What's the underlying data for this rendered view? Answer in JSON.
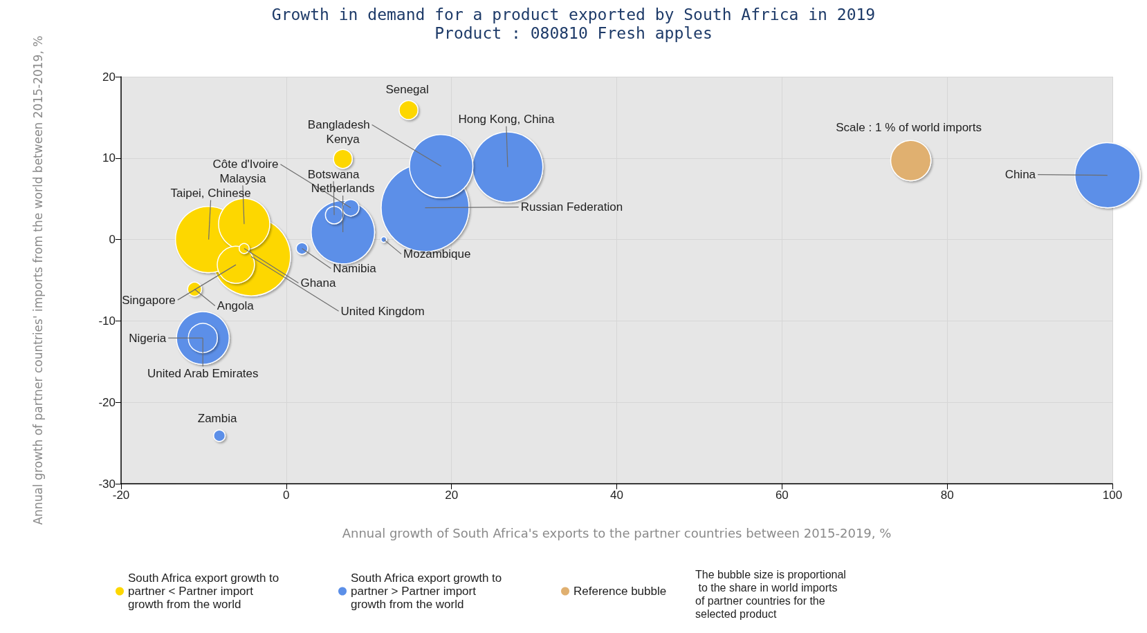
{
  "chart_data": {
    "type": "bubble",
    "title": "Growth in demand for a product exported by South Africa in 2019",
    "subtitle": "Product : 080810 Fresh apples",
    "xlabel": "Annual growth of South Africa's exports to the partner countries between 2015-2019, %",
    "ylabel": "Annual growth of partner countries' imports from the world between 2015-2019, %",
    "xlim": [
      -20,
      100
    ],
    "xticks": [
      -20,
      0,
      20,
      40,
      60,
      80,
      100
    ],
    "ylim": [
      -30,
      20
    ],
    "yticks": [
      -30,
      -20,
      -10,
      0,
      10,
      20
    ],
    "grid": true,
    "legend": "bottom",
    "marker": "circle",
    "series": [
      {
        "name": "South Africa export growth to partner < Partner import growth from the world",
        "color": "#fdd700",
        "x": [
          -4.25,
          -9.4,
          -5.1,
          -6.1,
          14.8,
          6.85,
          -11.1,
          -5.1
        ],
        "values": [
          -2.1,
          0.0,
          1.9,
          -3.1,
          15.9,
          9.9,
          -6.1,
          -1.1
        ],
        "sizes": [
          0.8,
          0.57,
          0.34,
          0.18,
          0.046,
          0.046,
          0.025,
          0.013
        ]
      },
      {
        "name": "South Africa export growth to partner > Partner import growth from the world",
        "color": "#5b8fe8",
        "x": [
          16.8,
          26.8,
          99.4,
          18.75,
          6.85,
          -10.1,
          -10.1,
          5.8,
          7.8,
          1.9,
          -8.1,
          11.8
        ],
        "values": [
          3.9,
          8.9,
          7.9,
          9.0,
          0.9,
          -12.1,
          -12.1,
          3.0,
          3.9,
          -1.1,
          -24.1,
          0.0
        ],
        "sizes": [
          1,
          0.64,
          0.55,
          0.52,
          0.52,
          0.36,
          0.11,
          0.04,
          0.035,
          0.017,
          0.017,
          0.004
        ]
      },
      {
        "name": "Reference bubble",
        "color": "#e0b070",
        "x": [
          75.6
        ],
        "values": [
          9.7
        ],
        "sizes": [
          0.21
        ]
      }
    ],
    "annotations": [
      {
        "text": "Senegal",
        "x": 14.8,
        "y": 15.9
      },
      {
        "text": "Bangladesh",
        "x": 18.75,
        "y": 9.0
      },
      {
        "text": "Kenya",
        "x": 6.85,
        "y": 9.9
      },
      {
        "text": "Hong Kong, China",
        "x": 26.8,
        "y": 8.9
      },
      {
        "text": "Russian Federation",
        "x": 16.8,
        "y": 3.9
      },
      {
        "text": "Côte d'Ivoire",
        "x": 7.8,
        "y": 3.9
      },
      {
        "text": "Malaysia",
        "x": -5.1,
        "y": 1.9
      },
      {
        "text": "Taipei, Chinese",
        "x": -9.4,
        "y": 0.0
      },
      {
        "text": "Botswana",
        "x": 5.8,
        "y": 3.0
      },
      {
        "text": "Netherlands",
        "x": 6.85,
        "y": 0.9
      },
      {
        "text": "Namibia",
        "x": 1.9,
        "y": -1.1
      },
      {
        "text": "Mozambique",
        "x": 11.8,
        "y": 0.0
      },
      {
        "text": "Ghana",
        "x": -5.1,
        "y": -1.1
      },
      {
        "text": "United Kingdom",
        "x": -4.25,
        "y": -2.1
      },
      {
        "text": "Singapore",
        "x": -6.1,
        "y": -3.1
      },
      {
        "text": "Angola",
        "x": -11.1,
        "y": -6.1
      },
      {
        "text": "Nigeria",
        "x": -10.1,
        "y": -12.1
      },
      {
        "text": "United Arab Emirates",
        "x": -10.1,
        "y": -12.1
      },
      {
        "text": "Zambia",
        "x": -8.1,
        "y": -24.1
      },
      {
        "text": "China",
        "x": 99.4,
        "y": 7.9
      },
      {
        "text": "Scale : 1 % of world imports",
        "x": 75.6,
        "y": 9.7
      },
      "The bubble size is proportional to the share in world imports of partner countries for the selected product"
    ]
  }
}
